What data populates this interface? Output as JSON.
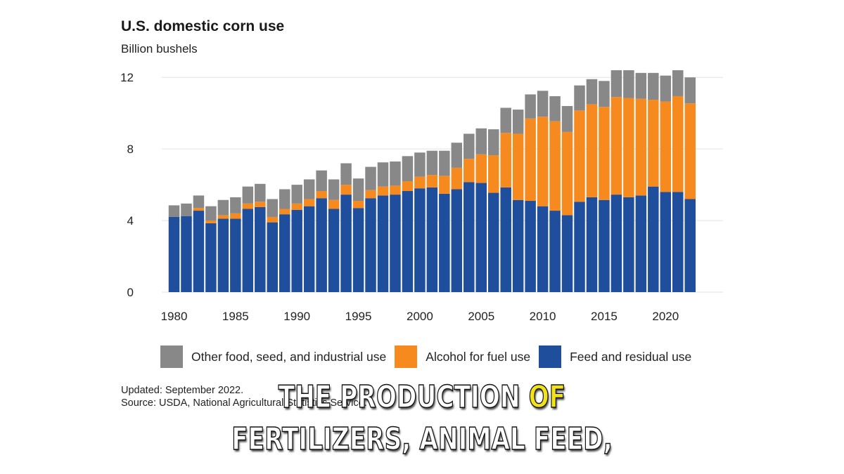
{
  "header": {
    "title": "U.S. domestic corn use",
    "subtitle": "Billion bushels"
  },
  "colors": {
    "other": "#888888",
    "alcohol": "#f78a1e",
    "feed": "#1f4e9c",
    "grid": "#e3e3e3",
    "caption_text": "#ffffff",
    "caption_highlight": "#f2e21a"
  },
  "chart_data": {
    "type": "bar",
    "stacked": true,
    "title": "U.S. domestic corn use",
    "ylabel": "Billion bushels",
    "xlabel": "",
    "ylim": [
      0,
      12.4
    ],
    "yticks": [
      0,
      4,
      8,
      12
    ],
    "xticks": [
      1980,
      1985,
      1990,
      1995,
      2000,
      2005,
      2010,
      2015,
      2020
    ],
    "grid": true,
    "legend_position": "bottom",
    "categories": [
      1980,
      1981,
      1982,
      1983,
      1984,
      1985,
      1986,
      1987,
      1988,
      1989,
      1990,
      1991,
      1992,
      1993,
      1994,
      1995,
      1996,
      1997,
      1998,
      1999,
      2000,
      2001,
      2002,
      2003,
      2004,
      2005,
      2006,
      2007,
      2008,
      2009,
      2010,
      2011,
      2012,
      2013,
      2014,
      2015,
      2016,
      2017,
      2018,
      2019,
      2020,
      2021,
      2022
    ],
    "series": [
      {
        "name": "Feed and residual use",
        "color_key": "feed",
        "values": [
          4.2,
          4.25,
          4.55,
          3.85,
          4.1,
          4.1,
          4.65,
          4.75,
          3.9,
          4.35,
          4.6,
          4.8,
          5.25,
          4.65,
          5.45,
          4.7,
          5.25,
          5.4,
          5.45,
          5.65,
          5.8,
          5.85,
          5.5,
          5.75,
          6.15,
          6.1,
          5.55,
          5.85,
          5.15,
          5.1,
          4.8,
          4.55,
          4.3,
          5.05,
          5.3,
          5.15,
          5.45,
          5.3,
          5.4,
          5.9,
          5.6,
          5.6,
          5.2
        ]
      },
      {
        "name": "Alcohol for fuel use",
        "color_key": "alcohol",
        "values": [
          0.0,
          0.0,
          0.15,
          0.15,
          0.2,
          0.3,
          0.3,
          0.3,
          0.3,
          0.3,
          0.35,
          0.4,
          0.4,
          0.5,
          0.55,
          0.4,
          0.45,
          0.5,
          0.5,
          0.55,
          0.65,
          0.7,
          1.0,
          1.2,
          1.3,
          1.6,
          2.1,
          3.05,
          3.7,
          4.6,
          5.0,
          5.0,
          4.65,
          5.1,
          5.2,
          5.2,
          5.45,
          5.55,
          5.4,
          4.85,
          5.05,
          5.35,
          5.35
        ]
      },
      {
        "name": "Other food, seed, and industrial use",
        "color_key": "other",
        "values": [
          0.65,
          0.7,
          0.7,
          0.8,
          0.85,
          0.9,
          0.95,
          1.0,
          1.0,
          1.1,
          1.05,
          1.1,
          1.15,
          1.15,
          1.2,
          1.25,
          1.3,
          1.35,
          1.35,
          1.4,
          1.35,
          1.35,
          1.4,
          1.4,
          1.4,
          1.45,
          1.45,
          1.4,
          1.35,
          1.35,
          1.45,
          1.4,
          1.45,
          1.4,
          1.4,
          1.45,
          1.5,
          1.55,
          1.45,
          1.5,
          1.45,
          1.45,
          1.45
        ]
      }
    ]
  },
  "legend": {
    "items": [
      {
        "label": "Other food, seed, and industrial use",
        "color_key": "other"
      },
      {
        "label": "Alcohol for fuel use",
        "color_key": "alcohol"
      },
      {
        "label": "Feed and residual use",
        "color_key": "feed"
      }
    ]
  },
  "footnote": {
    "updated": "Updated: September 2022.",
    "source": "Source: USDA, National Agricultural Statistics Service."
  },
  "caption": {
    "line1_before": "THE PRODUCTION ",
    "line1_highlight": "OF",
    "line2": "FERTILIZERS, ANIMAL FEED,"
  }
}
